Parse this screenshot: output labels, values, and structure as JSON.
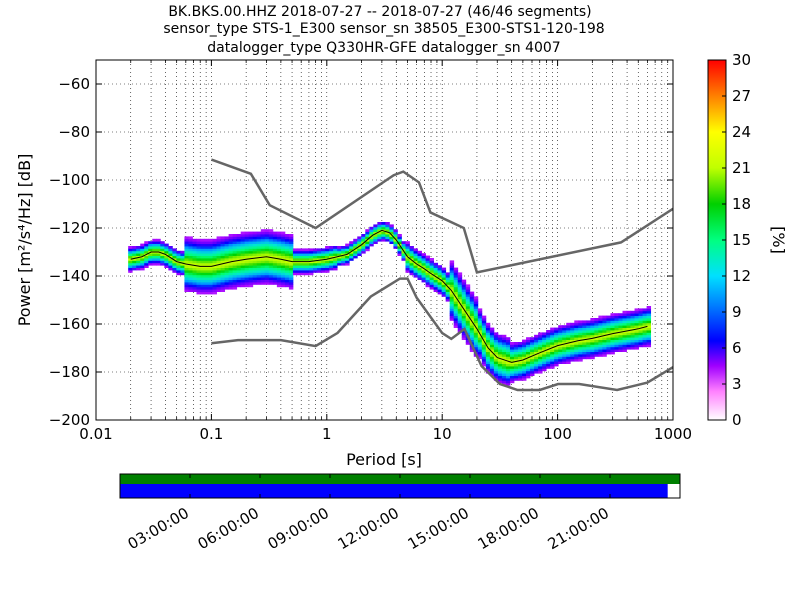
{
  "title_lines": [
    "BK.BKS.00.HHZ   2018-07-27 -- 2018-07-27  (46/46 segments)",
    "sensor_type STS-1_E300 sensor_sn 38505_E300-STS1-120-198",
    "datalogger_type Q330HR-GFE datalogger_sn 4007"
  ],
  "chart_data": {
    "type": "heatmap",
    "xlabel": "Period [s]",
    "ylabel": "Power [m²/s⁴/Hz] [dB]",
    "x_scale": "log",
    "xlim": [
      0.01,
      1000
    ],
    "ylim": [
      -200,
      -50
    ],
    "x_ticks": [
      0.01,
      0.1,
      1,
      10,
      100,
      1000
    ],
    "x_tick_labels": [
      "0.01",
      "0.1",
      "1",
      "10",
      "100",
      "1000"
    ],
    "y_ticks": [
      -200,
      -180,
      -160,
      -140,
      -120,
      -100,
      -80,
      -60
    ],
    "y_tick_labels": [
      "−200",
      "−180",
      "−160",
      "−140",
      "−120",
      "−100",
      "−80",
      "−60"
    ],
    "grid": true,
    "colorbar": {
      "label": "[%]",
      "range": [
        0,
        30
      ],
      "ticks": [
        0,
        3,
        6,
        9,
        12,
        15,
        18,
        21,
        24,
        27,
        30
      ],
      "tick_labels": [
        "0",
        "3",
        "6",
        "9",
        "12",
        "15",
        "18",
        "21",
        "24",
        "27",
        "30"
      ]
    },
    "noise_model_high": {
      "period": [
        0.1,
        0.22,
        0.32,
        0.8,
        3.8,
        4.6,
        6.3,
        7.9,
        15.4,
        20,
        354,
        1000
      ],
      "power": [
        -91.5,
        -97.4,
        -110.5,
        -120,
        -98,
        -96.5,
        -101,
        -113.5,
        -120,
        -138.5,
        -126,
        -112
      ]
    },
    "noise_model_low": {
      "period": [
        0.1,
        0.17,
        0.4,
        0.8,
        1.24,
        2.4,
        4.3,
        5,
        6,
        10,
        12,
        15.6,
        21.9,
        31.6,
        45,
        70,
        101,
        154,
        328,
        600,
        1000
      ],
      "power": [
        -168,
        -166.7,
        -166.7,
        -169.2,
        -163.7,
        -148.6,
        -141.1,
        -141.1,
        -149,
        -163.8,
        -166.2,
        -162.1,
        -177.5,
        -185,
        -187.5,
        -187.5,
        -185,
        -185,
        -187.5,
        -184.4,
        -178
      ]
    },
    "mode_curve": {
      "period": [
        0.02,
        0.025,
        0.03,
        0.035,
        0.04,
        0.05,
        0.06,
        0.08,
        0.1,
        0.15,
        0.2,
        0.3,
        0.4,
        0.5,
        0.7,
        1,
        1.5,
        2,
        2.5,
        3,
        3.5,
        4,
        5,
        6,
        7,
        8,
        10,
        12,
        15,
        20,
        25,
        30,
        40,
        50,
        70,
        100,
        150,
        200,
        300,
        500,
        600
      ],
      "power": [
        -133,
        -132,
        -130,
        -130,
        -131,
        -134,
        -135,
        -136,
        -136,
        -134,
        -133,
        -132,
        -133,
        -134,
        -134,
        -133,
        -131,
        -127,
        -123,
        -121,
        -122,
        -125,
        -132,
        -135,
        -137,
        -139,
        -142,
        -146,
        -153,
        -162,
        -170,
        -174,
        -176,
        -175,
        -172,
        -169,
        -167,
        -166,
        -164,
        -162,
        -161
      ]
    },
    "time_axis": {
      "tick_labels": [
        "03:00:00",
        "06:00:00",
        "09:00:00",
        "12:00:00",
        "15:00:00",
        "18:00:00",
        "21:00:00"
      ],
      "data_available_fraction": 1.0,
      "segments_used_fraction": 0.978
    }
  },
  "colors": {
    "noise_model": "#666666",
    "mode_curve": "#000000",
    "time_bar_top": "#008000",
    "time_bar_bottom": "#0000ff"
  }
}
